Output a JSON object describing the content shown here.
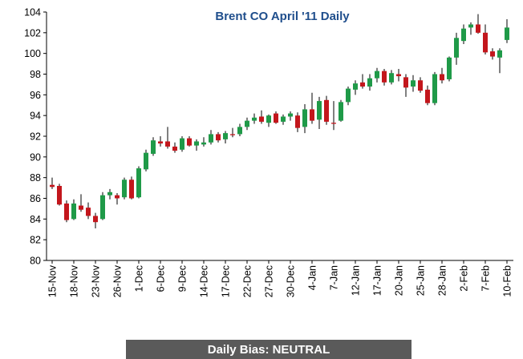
{
  "chart_data": {
    "type": "candlestick",
    "title": "Brent CO April '11 Daily",
    "categories": [
      "15-Nov",
      null,
      null,
      "18-Nov",
      null,
      null,
      "23-Nov",
      null,
      null,
      "26-Nov",
      null,
      null,
      "1-Dec",
      null,
      null,
      "6-Dec",
      null,
      null,
      "9-Dec",
      null,
      null,
      "14-Dec",
      null,
      null,
      "17-Dec",
      null,
      null,
      "22-Dec",
      null,
      null,
      "27-Dec",
      null,
      null,
      "30-Dec",
      null,
      null,
      "4-Jan",
      null,
      null,
      "7-Jan",
      null,
      null,
      "12-Jan",
      null,
      null,
      "17-Jan",
      null,
      null,
      "20-Jan",
      null,
      null,
      "25-Jan",
      null,
      null,
      "28-Jan",
      null,
      null,
      "2-Feb",
      null,
      null,
      "7-Feb",
      null,
      null,
      "10-Feb"
    ],
    "open": [
      87.3,
      87.2,
      85.5,
      84.0,
      85.3,
      85.1,
      84.3,
      84.0,
      86.3,
      86.3,
      86.1,
      87.8,
      86.1,
      88.8,
      90.3,
      91.5,
      91.5,
      91.0,
      90.7,
      91.8,
      91.1,
      91.2,
      91.4,
      92.2,
      91.7,
      92.2,
      92.2,
      92.9,
      93.5,
      93.9,
      93.3,
      94.2,
      93.4,
      93.9,
      94.0,
      92.9,
      94.6,
      93.6,
      95.5,
      93.3,
      93.5,
      95.3,
      96.5,
      97.2,
      96.8,
      97.6,
      98.3,
      97.2,
      98.0,
      97.7,
      96.8,
      97.4,
      96.5,
      95.2,
      98.0,
      97.5,
      99.6,
      101.2,
      102.5,
      102.8,
      102.0,
      100.2,
      99.6,
      101.3
    ],
    "high": [
      88.0,
      87.4,
      85.8,
      85.9,
      86.4,
      85.6,
      84.6,
      86.6,
      86.9,
      86.5,
      88.0,
      88.1,
      89.1,
      90.7,
      91.9,
      92.0,
      92.9,
      91.4,
      92.0,
      92.0,
      91.7,
      91.9,
      92.6,
      92.4,
      92.5,
      92.8,
      93.2,
      93.8,
      94.2,
      94.5,
      94.1,
      94.4,
      94.1,
      94.4,
      94.3,
      95.1,
      96.2,
      95.8,
      95.9,
      95.4,
      95.5,
      96.8,
      97.4,
      98.0,
      98.0,
      98.6,
      98.5,
      98.4,
      98.5,
      98.0,
      97.9,
      97.7,
      96.9,
      98.2,
      98.6,
      99.7,
      102.0,
      102.8,
      103.0,
      103.8,
      102.8,
      100.5,
      100.5,
      103.3
    ],
    "low": [
      86.9,
      85.3,
      83.7,
      83.9,
      84.7,
      84.0,
      83.1,
      83.9,
      85.9,
      85.4,
      85.9,
      85.9,
      86.0,
      88.6,
      90.1,
      91.0,
      90.8,
      90.4,
      90.5,
      91.0,
      90.6,
      91.0,
      91.2,
      91.4,
      91.3,
      91.9,
      92.0,
      92.6,
      93.2,
      93.2,
      92.9,
      93.2,
      93.1,
      93.5,
      92.4,
      92.3,
      93.2,
      92.7,
      93.1,
      92.6,
      93.4,
      95.0,
      96.0,
      96.6,
      96.4,
      97.2,
      96.9,
      97.0,
      97.3,
      95.8,
      96.3,
      96.2,
      95.0,
      95.0,
      97.1,
      97.3,
      98.9,
      100.9,
      101.8,
      101.9,
      99.9,
      99.4,
      98.1,
      101.0
    ],
    "close": [
      87.1,
      85.4,
      83.9,
      85.5,
      84.9,
      84.3,
      83.7,
      86.3,
      86.6,
      86.0,
      87.8,
      86.0,
      88.9,
      90.4,
      91.6,
      91.3,
      91.0,
      90.6,
      91.8,
      91.1,
      91.5,
      91.4,
      92.2,
      91.6,
      92.3,
      92.1,
      92.9,
      93.5,
      93.8,
      93.4,
      94.0,
      93.3,
      93.9,
      94.2,
      92.8,
      94.6,
      93.5,
      95.4,
      93.4,
      93.2,
      95.3,
      96.6,
      97.1,
      96.8,
      97.6,
      98.3,
      97.2,
      98.1,
      97.8,
      96.7,
      97.4,
      96.4,
      95.2,
      98.0,
      97.4,
      99.6,
      101.5,
      102.4,
      102.8,
      102.0,
      100.1,
      99.7,
      100.3,
      102.5
    ],
    "up_color": "#1f9a48",
    "down_color": "#c3161c",
    "ylim": [
      80,
      104
    ],
    "yticks": [
      80,
      82,
      84,
      86,
      88,
      90,
      92,
      94,
      96,
      98,
      100,
      102,
      104
    ],
    "footer": "Daily Bias: NEUTRAL"
  }
}
